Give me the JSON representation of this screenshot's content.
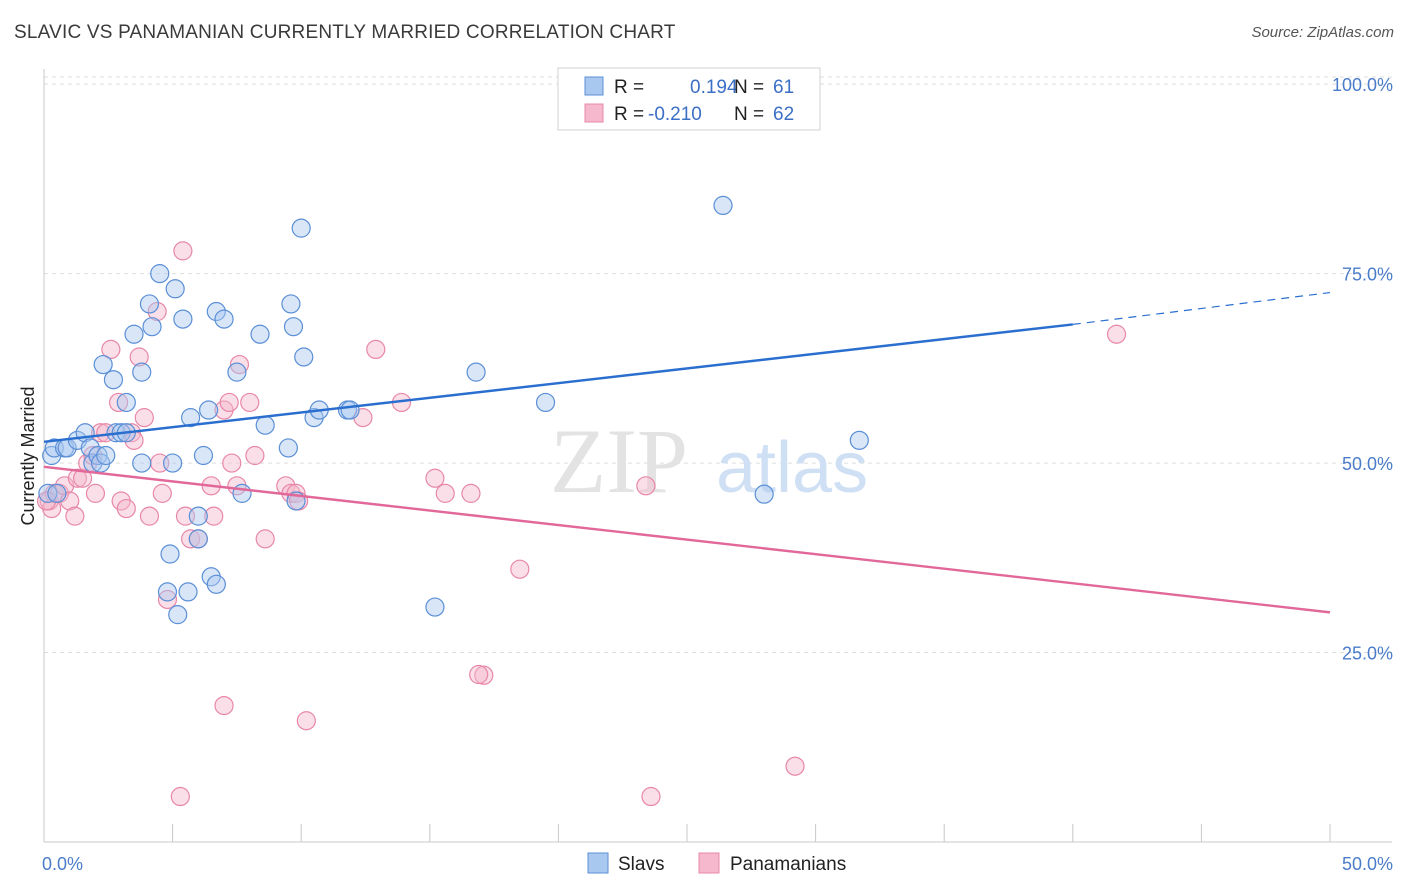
{
  "title": "SLAVIC VS PANAMANIAN CURRENTLY MARRIED CORRELATION CHART",
  "source": "Source: ZipAtlas.com",
  "watermark": {
    "zip": "ZIP",
    "atlas": "atlas"
  },
  "colors": {
    "slavs_fill": "#a8c8f0",
    "slavs_stroke": "#5b8fd6",
    "slavs_line": "#2a6fcf",
    "pan_fill": "#f5b8cc",
    "pan_stroke": "#e887a8",
    "pan_line": "#e2689a",
    "tick": "#4a7cc9",
    "grid": "#dddddd"
  },
  "legend": {
    "rows": [
      {
        "r_label": "R =",
        "r_value": "0.194",
        "n_label": "N =",
        "n_value": "61"
      },
      {
        "r_label": "R =",
        "r_value": "-0.210",
        "n_label": "N =",
        "n_value": "62"
      }
    ]
  },
  "chart_data": {
    "type": "scatter",
    "xlabel": "",
    "ylabel": "Currently Married",
    "xlim": [
      0,
      50
    ],
    "ylim": [
      0,
      102
    ],
    "x_tick_labels": [
      "0.0%",
      "50.0%"
    ],
    "y_tick_labels": [
      "100.0%",
      "75.0%",
      "50.0%",
      "25.0%"
    ],
    "y_ticks": [
      100,
      75,
      50,
      25
    ],
    "series": [
      {
        "name": "Slavs",
        "trend": {
          "x": [
            0,
            40
          ],
          "y": [
            52.8,
            68.3
          ],
          "dashed_to": [
            50,
            72.5
          ]
        },
        "points": [
          [
            0.3,
            51
          ],
          [
            0.4,
            52
          ],
          [
            0.8,
            52
          ],
          [
            0.9,
            52
          ],
          [
            1.3,
            53
          ],
          [
            1.6,
            54
          ],
          [
            1.8,
            52
          ],
          [
            1.9,
            50
          ],
          [
            2.1,
            51
          ],
          [
            2.3,
            63
          ],
          [
            2.7,
            61
          ],
          [
            2.8,
            54
          ],
          [
            3.0,
            54
          ],
          [
            3.2,
            58
          ],
          [
            3.2,
            54
          ],
          [
            3.5,
            67
          ],
          [
            3.8,
            62
          ],
          [
            3.8,
            50
          ],
          [
            4.1,
            71
          ],
          [
            4.2,
            68
          ],
          [
            4.5,
            75
          ],
          [
            4.8,
            33
          ],
          [
            4.9,
            38
          ],
          [
            5.0,
            50
          ],
          [
            5.1,
            73
          ],
          [
            5.2,
            30
          ],
          [
            5.4,
            69
          ],
          [
            5.6,
            33
          ],
          [
            5.7,
            56
          ],
          [
            6.0,
            40
          ],
          [
            6.0,
            43
          ],
          [
            6.2,
            51
          ],
          [
            6.4,
            57
          ],
          [
            6.5,
            35
          ],
          [
            6.7,
            34
          ],
          [
            6.7,
            70
          ],
          [
            7.0,
            69
          ],
          [
            7.5,
            62
          ],
          [
            7.7,
            46
          ],
          [
            8.4,
            67
          ],
          [
            8.6,
            55
          ],
          [
            9.5,
            52
          ],
          [
            9.6,
            71
          ],
          [
            9.7,
            68
          ],
          [
            9.8,
            45
          ],
          [
            10.0,
            81
          ],
          [
            10.1,
            64
          ],
          [
            10.5,
            56
          ],
          [
            10.7,
            57
          ],
          [
            11.8,
            57
          ],
          [
            11.9,
            57
          ],
          [
            15.2,
            31
          ],
          [
            16.8,
            62
          ],
          [
            19.5,
            58
          ],
          [
            26.4,
            84
          ],
          [
            31.7,
            53
          ],
          [
            0.15,
            46
          ],
          [
            0.5,
            46
          ],
          [
            2.2,
            50
          ],
          [
            2.4,
            51
          ],
          [
            28,
            45.9
          ]
        ]
      },
      {
        "name": "Panamanians",
        "trend": {
          "x": [
            0,
            50
          ],
          "y": [
            49.5,
            30.3
          ]
        },
        "points": [
          [
            0.2,
            45
          ],
          [
            0.4,
            46
          ],
          [
            0.6,
            46
          ],
          [
            0.8,
            47
          ],
          [
            1.0,
            45
          ],
          [
            1.2,
            43
          ],
          [
            1.3,
            48
          ],
          [
            1.5,
            48
          ],
          [
            1.7,
            50
          ],
          [
            1.9,
            51
          ],
          [
            2.0,
            46
          ],
          [
            2.2,
            54
          ],
          [
            2.4,
            54
          ],
          [
            2.6,
            65
          ],
          [
            2.9,
            58
          ],
          [
            3.0,
            45
          ],
          [
            3.2,
            44
          ],
          [
            3.4,
            54
          ],
          [
            3.5,
            53
          ],
          [
            3.7,
            64
          ],
          [
            3.9,
            56
          ],
          [
            4.1,
            43
          ],
          [
            4.4,
            70
          ],
          [
            4.5,
            50
          ],
          [
            4.6,
            46
          ],
          [
            4.8,
            32
          ],
          [
            5.4,
            78
          ],
          [
            5.5,
            43
          ],
          [
            5.7,
            40
          ],
          [
            6.0,
            40
          ],
          [
            6.5,
            47
          ],
          [
            6.6,
            43
          ],
          [
            7.0,
            57
          ],
          [
            7.2,
            58
          ],
          [
            7.3,
            50
          ],
          [
            7.5,
            47
          ],
          [
            7.6,
            63
          ],
          [
            8.0,
            58
          ],
          [
            8.2,
            51
          ],
          [
            8.6,
            40
          ],
          [
            9.4,
            47
          ],
          [
            9.6,
            46
          ],
          [
            9.8,
            46
          ],
          [
            9.9,
            45
          ],
          [
            12.4,
            56
          ],
          [
            12.9,
            65
          ],
          [
            13.9,
            58
          ],
          [
            15.2,
            48
          ],
          [
            15.6,
            46
          ],
          [
            16.6,
            46
          ],
          [
            17.1,
            22
          ],
          [
            18.5,
            36
          ],
          [
            23.4,
            47
          ],
          [
            23.6,
            6
          ],
          [
            29.2,
            10
          ],
          [
            41.7,
            67
          ],
          [
            7.0,
            18
          ],
          [
            10.2,
            16
          ],
          [
            5.3,
            6
          ],
          [
            0.3,
            44
          ],
          [
            0.1,
            45
          ],
          [
            16.9,
            22.1
          ]
        ]
      }
    ]
  },
  "bottom_legend": [
    "Slavs",
    "Panamanians"
  ]
}
